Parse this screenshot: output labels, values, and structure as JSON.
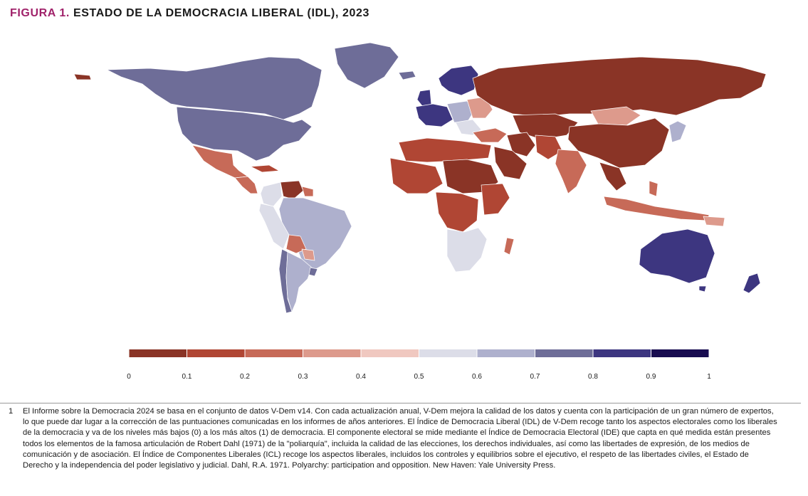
{
  "title": {
    "prefix": "FIGURA 1.",
    "text": "ESTADO DE LA DEMOCRACIA LIBERAL (IDL), 2023"
  },
  "legend": {
    "colors": [
      "#8a3426",
      "#b04634",
      "#c76a58",
      "#dd9a8c",
      "#f0c8c0",
      "#dcdde8",
      "#aeb0cd",
      "#6e6d98",
      "#3d3680",
      "#180c50"
    ],
    "ticks": [
      "0",
      "0.1",
      "0.2",
      "0.3",
      "0.4",
      "0.5",
      "0.6",
      "0.7",
      "0.8",
      "0.9",
      "1"
    ]
  },
  "colors": {
    "land_grey": "#a7a8c6",
    "ocean": "#ffffff"
  },
  "footnote": {
    "number": "1",
    "text": "El Informe sobre la Democracia 2024 se basa en el conjunto de datos V-Dem v14. Con cada actualización anual, V-Dem mejora la calidad de los datos y cuenta con la participación de un gran número de expertos, lo que puede dar lugar a la corrección de las puntuaciones comunicadas en los informes de años anteriores. El Índice de Democracia Liberal (IDL) de V-Dem recoge tanto los aspectos electorales como los liberales de la democracia y va de los niveles más bajos (0) a los más altos (1) de democracia. El componente electoral se mide mediante el Índice de Democracia Electoral (IDE) que capta en qué medida están presentes todos los elementos de la famosa articulación de Robert Dahl (1971) de la \"poliarquía\", incluida la calidad de las elecciones, los derechos individuales, así como las libertades de expresión, de los medios de comunicación y de asociación. El Índice de Componentes Liberales (ICL) recoge los aspectos liberales, incluidos los controles y equilibrios sobre el ejecutivo, el respeto de las libertades civiles, el Estado de Derecho y la independencia del poder legislativo y judicial. Dahl, R.A. 1971. Polyarchy: participation and opposition. New Haven: Yale University Press."
  }
}
